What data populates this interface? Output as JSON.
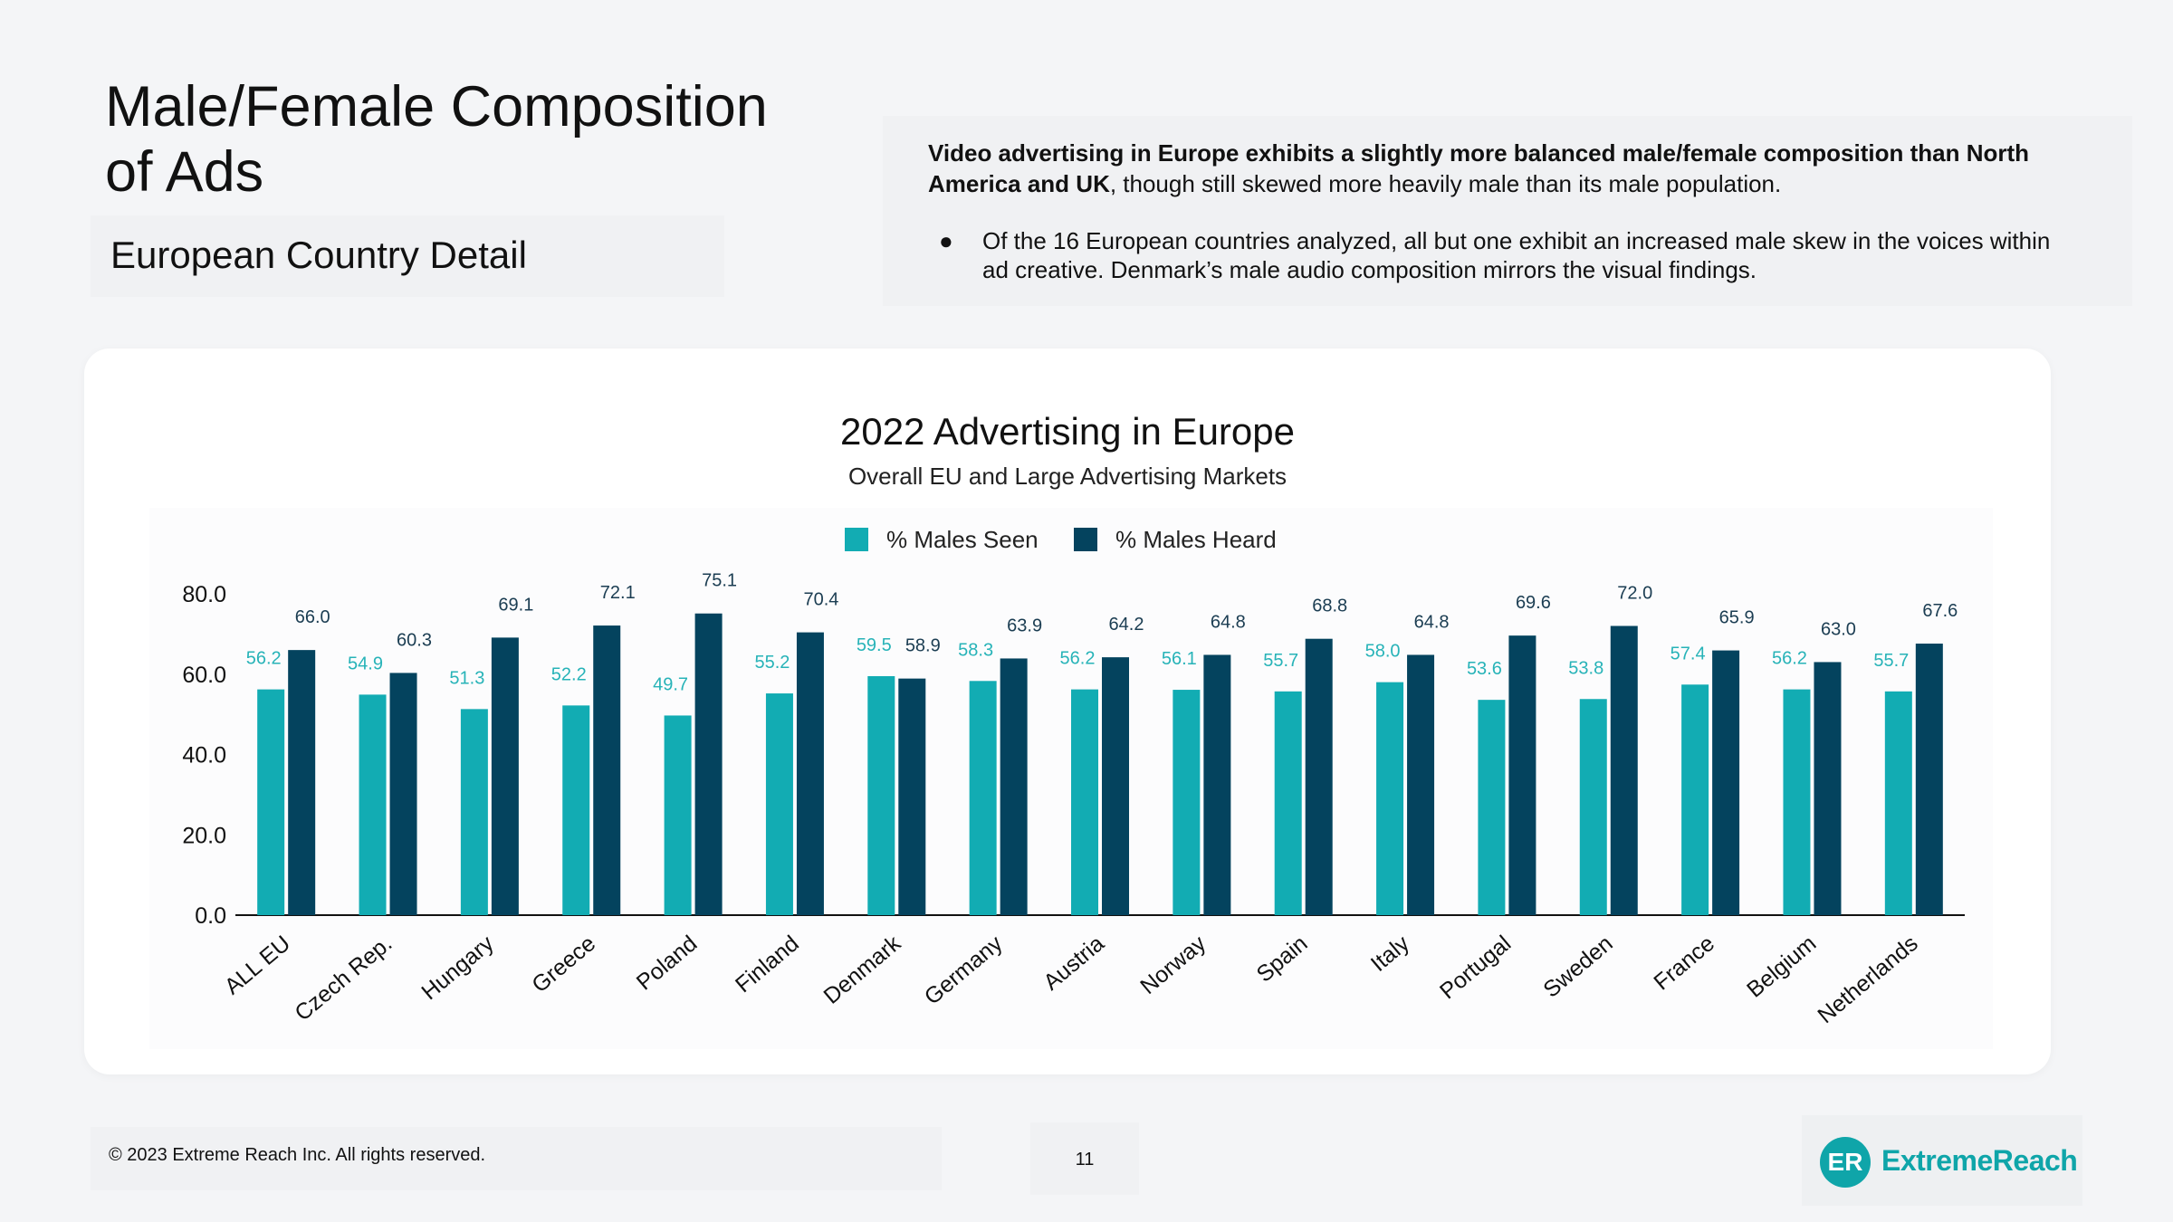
{
  "header": {
    "title_line1": "Male/Female Composition",
    "title_line2": "of Ads",
    "subtitle": "European Country Detail"
  },
  "description": {
    "bold_text": "Video advertising in Europe exhibits a slightly more balanced male/female composition than North America and UK",
    "regular_text": ", though still skewed more heavily male than its male population.",
    "bullet": "Of the 16 European countries analyzed, all but one exhibit an increased male skew in the voices within ad creative. Denmark’s male audio composition mirrors the visual findings."
  },
  "colors": {
    "seen": "#12acb3",
    "heard": "#04435e",
    "seen_label": "#27b3b8",
    "heard_label": "#1b3d52"
  },
  "chart_data": {
    "type": "bar",
    "title": "2022 Advertising in Europe",
    "subtitle": "Overall EU and Large Advertising Markets",
    "categories": [
      "ALL EU",
      "Czech Rep.",
      "Hungary",
      "Greece",
      "Poland",
      "Finland",
      "Denmark",
      "Germany",
      "Austria",
      "Norway",
      "Spain",
      "Italy",
      "Portugal",
      "Sweden",
      "France",
      "Belgium",
      "Netherlands"
    ],
    "series": [
      {
        "name": "% Males Seen",
        "values": [
          56.2,
          54.9,
          51.3,
          52.2,
          49.7,
          55.2,
          59.5,
          58.3,
          56.2,
          56.1,
          55.7,
          58.0,
          53.6,
          53.8,
          57.4,
          56.2,
          55.7
        ]
      },
      {
        "name": "% Males Heard",
        "values": [
          66.0,
          60.3,
          69.1,
          72.1,
          75.1,
          70.4,
          58.9,
          63.9,
          64.2,
          64.8,
          68.8,
          64.8,
          69.6,
          72.0,
          65.9,
          63.0,
          67.6
        ]
      }
    ],
    "seen_labels": [
      "56.2",
      "54.9",
      "51.3",
      "52.2",
      "49.7",
      "55.2",
      "59.5",
      "58.3",
      "56.2",
      "56.1",
      "55.7",
      "58.0",
      "53.6",
      "53.8",
      "57.4",
      "56.2",
      "55.7"
    ],
    "heard_labels": [
      "66.0",
      "60.3",
      "69.1",
      "72.1",
      "75.1",
      "70.4",
      "58.9",
      "63.9",
      "64.2",
      "64.8",
      "68.8",
      "64.8",
      "69.6",
      "72.0",
      "65.9",
      "63.0",
      "67.6"
    ],
    "ylim": [
      0,
      80
    ],
    "yticks": [
      "0.0",
      "20.0",
      "40.0",
      "60.0",
      "80.0"
    ],
    "ytick_values": [
      0,
      20,
      40,
      60,
      80
    ],
    "xlabel": "",
    "ylabel": "",
    "legend": "top-center",
    "grid": false
  },
  "footer": {
    "copyright": "© 2023 Extreme Reach Inc. All rights reserved.",
    "page_number": "11",
    "logo_mark": "ER",
    "logo_text": "ExtremeReach"
  }
}
